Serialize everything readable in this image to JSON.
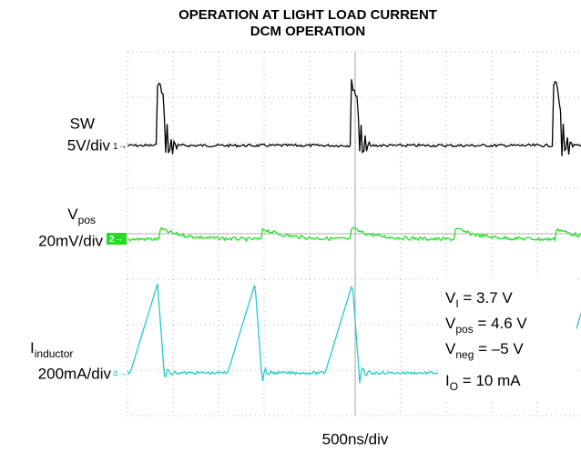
{
  "title": [
    "OPERATION AT LIGHT LOAD CURRENT",
    "DCM OPERATION"
  ],
  "channels": [
    {
      "name": "SW",
      "scale": "5V/div",
      "marker": "1"
    },
    {
      "name": "V",
      "sub": "pos",
      "scale": "20mV/div",
      "marker": "2"
    },
    {
      "name": "I",
      "sub": "inductor",
      "scale": "200mA/div",
      "marker": "4"
    }
  ],
  "annotations": [
    {
      "symbol": "V",
      "sub": "I",
      "rest": " = 3.7 V"
    },
    {
      "symbol": "V",
      "sub": "pos",
      "rest": " = 4.6 V"
    },
    {
      "symbol": "V",
      "sub": "neg",
      "rest": " = –5 V"
    },
    {
      "symbol": "I",
      "sub": "O",
      "rest": " = 10 mA"
    }
  ],
  "time_scale": "500ns/div"
}
